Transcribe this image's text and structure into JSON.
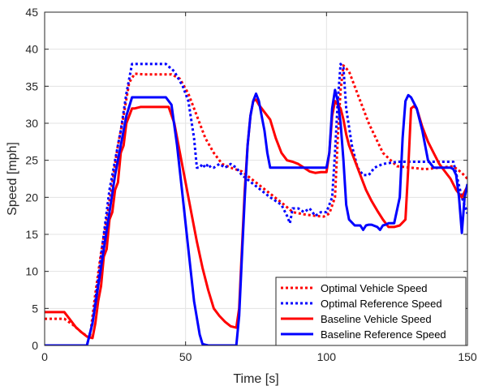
{
  "chart_data": {
    "type": "line",
    "xlabel": "Time [s]",
    "ylabel": "Speed [mph]",
    "xlim": [
      0,
      150
    ],
    "ylim": [
      0,
      45
    ],
    "xticks": [
      0,
      50,
      100,
      150
    ],
    "yticks": [
      0,
      5,
      10,
      15,
      20,
      25,
      30,
      35,
      40,
      45
    ],
    "grid": true,
    "legend_position": "bottom-right",
    "series": [
      {
        "name": "Optimal Vehicle Speed",
        "color": "#ff0000",
        "style": "dotted",
        "x": [
          0,
          7,
          10,
          13,
          16,
          18,
          20,
          22,
          24,
          26,
          28,
          30,
          32,
          35,
          40,
          45,
          48,
          51,
          54,
          57,
          60,
          63,
          66,
          70,
          75,
          80,
          85,
          88,
          92,
          96,
          99,
          101,
          103,
          104,
          105,
          106,
          108,
          111,
          115,
          120,
          125,
          130,
          135,
          140,
          145,
          148,
          150
        ],
        "y": [
          3.6,
          3.6,
          2.8,
          1.8,
          1.0,
          7.0,
          12.5,
          17.0,
          22.0,
          27.0,
          31.0,
          35.5,
          36.7,
          36.6,
          36.6,
          36.6,
          36.0,
          34.0,
          31.0,
          28.0,
          26.0,
          24.5,
          24.0,
          23.5,
          22.0,
          20.5,
          19.0,
          18.0,
          17.7,
          17.5,
          17.4,
          17.8,
          20.0,
          28.0,
          34.5,
          37.8,
          37.0,
          34.0,
          30.0,
          26.0,
          24.2,
          24.0,
          23.8,
          24.0,
          24.2,
          23.3,
          22.5
        ]
      },
      {
        "name": "Optimal Reference Speed",
        "color": "#0000ff",
        "style": "dotted",
        "x": [
          0,
          15,
          17,
          19,
          21,
          23,
          25,
          27,
          29,
          31,
          33,
          38,
          43,
          46,
          49,
          51,
          53,
          54,
          55,
          56,
          57,
          58,
          59,
          60,
          62,
          64,
          66,
          68,
          70,
          75,
          80,
          84,
          86,
          87,
          88,
          90,
          92,
          94,
          96,
          98,
          100,
          102,
          103,
          104,
          105,
          106,
          107,
          109,
          111,
          113,
          115,
          117,
          120,
          125,
          130,
          135,
          140,
          145,
          148,
          150
        ],
        "y": [
          0,
          0,
          3.0,
          9.0,
          15.0,
          21.0,
          25.0,
          29.0,
          34.0,
          38.0,
          38.0,
          38.0,
          38.0,
          37.0,
          35.0,
          33.0,
          28.0,
          24.0,
          24.0,
          24.5,
          24.0,
          24.5,
          24.0,
          24.0,
          24.5,
          24.0,
          24.5,
          24.0,
          23.0,
          21.5,
          20.0,
          19.0,
          17.5,
          16.5,
          18.5,
          18.5,
          18.0,
          18.5,
          17.5,
          18.0,
          18.0,
          20.0,
          26.0,
          33.0,
          38.0,
          37.5,
          32.0,
          27.0,
          24.0,
          23.0,
          23.0,
          24.0,
          24.5,
          24.8,
          24.8,
          24.8,
          24.8,
          24.8,
          20.0,
          17.8
        ]
      },
      {
        "name": "Baseline Vehicle Speed",
        "color": "#ff0000",
        "style": "solid",
        "x": [
          0,
          7,
          9,
          11,
          13,
          15,
          17,
          18,
          19,
          20,
          21,
          22,
          23,
          24,
          25,
          26,
          27,
          28,
          29,
          30,
          31,
          32,
          34,
          37,
          40,
          44,
          46,
          48,
          50,
          52,
          54,
          56,
          58,
          60,
          62,
          64,
          66,
          68,
          69,
          70,
          71,
          72,
          73,
          74,
          75,
          76,
          77,
          78,
          80,
          82,
          84,
          86,
          88,
          90,
          92,
          94,
          96,
          98,
          100,
          101,
          102,
          103,
          104,
          105,
          106,
          107,
          108,
          110,
          112,
          114,
          116,
          118,
          120,
          122,
          124,
          126,
          128,
          129,
          130,
          131,
          132,
          134,
          136,
          138,
          140,
          142,
          144,
          146,
          148,
          150
        ],
        "y": [
          4.5,
          4.5,
          3.5,
          2.5,
          1.8,
          1.2,
          1.0,
          3.0,
          6.0,
          8.0,
          12.0,
          13.0,
          17.0,
          18.0,
          21.0,
          22.0,
          26.0,
          27.0,
          30.0,
          31.0,
          32.0,
          32.0,
          32.2,
          32.2,
          32.2,
          32.2,
          30.0,
          26.0,
          22.0,
          18.0,
          14.0,
          10.5,
          7.5,
          5.0,
          4.0,
          3.2,
          2.6,
          2.4,
          5.0,
          13.0,
          21.0,
          27.0,
          31.0,
          33.0,
          33.2,
          32.5,
          32.0,
          31.5,
          30.5,
          28.0,
          26.0,
          25.0,
          24.8,
          24.5,
          24.0,
          23.5,
          23.3,
          23.4,
          23.4,
          26.0,
          31.0,
          33.0,
          32.5,
          32.0,
          30.5,
          28.5,
          27.0,
          25.0,
          23.0,
          21.0,
          19.5,
          18.2,
          17.0,
          16.0,
          16.0,
          16.2,
          17.0,
          24.0,
          32.0,
          32.3,
          32.0,
          29.5,
          27.5,
          26.0,
          24.5,
          23.5,
          22.5,
          21.0,
          20.0,
          21.5
        ]
      },
      {
        "name": "Baseline Reference Speed",
        "color": "#0000ff",
        "style": "solid",
        "x": [
          0,
          15,
          17,
          19,
          21,
          23,
          25,
          27,
          29,
          31,
          33,
          38,
          43,
          45,
          47,
          49,
          51,
          53,
          55,
          56,
          58,
          62,
          66,
          68,
          69,
          70,
          71,
          72,
          73,
          74,
          75,
          76,
          77,
          78,
          79,
          80,
          82,
          86,
          90,
          94,
          98,
          100,
          101,
          102,
          103,
          104,
          105,
          106,
          107,
          108,
          110,
          112,
          113,
          114,
          115,
          116,
          118,
          119,
          120,
          121,
          122,
          124,
          126,
          127,
          128,
          129,
          130,
          132,
          134,
          136,
          138,
          140,
          142,
          144,
          145,
          146,
          147,
          148,
          149,
          150
        ],
        "y": [
          0,
          0,
          3.0,
          8.0,
          13.0,
          18.0,
          23.0,
          27.0,
          31.0,
          33.5,
          33.5,
          33.5,
          33.5,
          32.5,
          27.0,
          20.0,
          13.0,
          6.0,
          1.5,
          0.2,
          0,
          0,
          0,
          0,
          4.0,
          12.0,
          20.0,
          27.0,
          31.0,
          33.0,
          34.0,
          33.0,
          31.0,
          29.0,
          26.0,
          24.0,
          24.0,
          24.0,
          24.0,
          24.0,
          24.0,
          24.0,
          26.0,
          32.0,
          34.5,
          33.0,
          30.0,
          25.0,
          19.0,
          17.0,
          16.2,
          16.2,
          15.6,
          16.2,
          16.3,
          16.3,
          16.0,
          15.6,
          16.2,
          16.3,
          16.5,
          16.5,
          20.0,
          28.0,
          33.0,
          33.8,
          33.5,
          32.0,
          29.0,
          25.0,
          24.0,
          24.0,
          24.0,
          24.0,
          23.8,
          23.0,
          20.0,
          15.2,
          20.0,
          21.8
        ]
      }
    ]
  }
}
